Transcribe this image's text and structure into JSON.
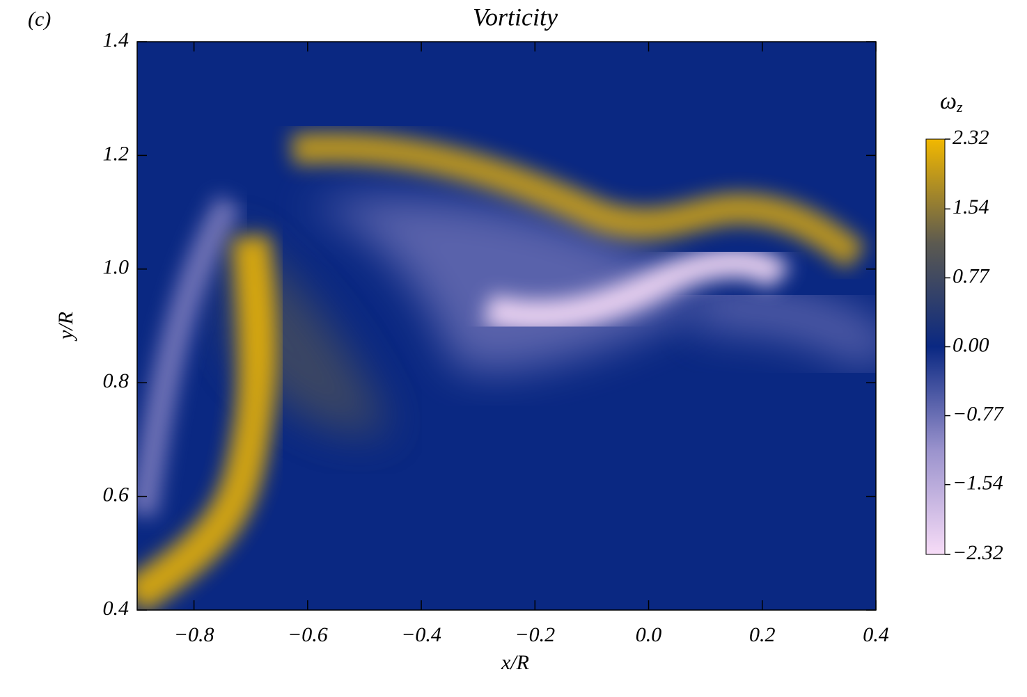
{
  "chart_data": {
    "type": "heatmap",
    "panel_label": "(c)",
    "title": "Vorticity",
    "xlabel": "x/R",
    "ylabel": "y/R",
    "xlim": [
      -0.9,
      0.4
    ],
    "xticks": [
      {
        "value": -0.8,
        "label": "−0.8"
      },
      {
        "value": -0.6,
        "label": "−0.6"
      },
      {
        "value": -0.4,
        "label": "−0.4"
      },
      {
        "value": -0.2,
        "label": "−0.2"
      },
      {
        "value": 0,
        "label": "0.0"
      },
      0.2,
      0.4
    ],
    "ylim": [
      0.4,
      1.4
    ],
    "yticks": [
      0.4,
      0.6,
      0.8,
      {
        "value": 1,
        "label": "1.0"
      },
      1.2,
      1.4
    ],
    "colorbar_label": "ω",
    "colorbar_label_subscript": "z",
    "clim": [
      -2.32,
      2.32
    ],
    "cticks": [
      {
        "value": -2.32,
        "label": "−2.32"
      },
      {
        "value": -1.54,
        "label": "−1.54"
      },
      {
        "value": -0.77,
        "label": "−0.77"
      },
      {
        "value": 0,
        "label": "0.00"
      },
      0.77,
      1.54,
      2.32
    ],
    "colormap": [
      "#f7dcf7",
      "#9b93cd",
      "#0a2882",
      "#5c5a50",
      "#f2b800"
    ]
  }
}
